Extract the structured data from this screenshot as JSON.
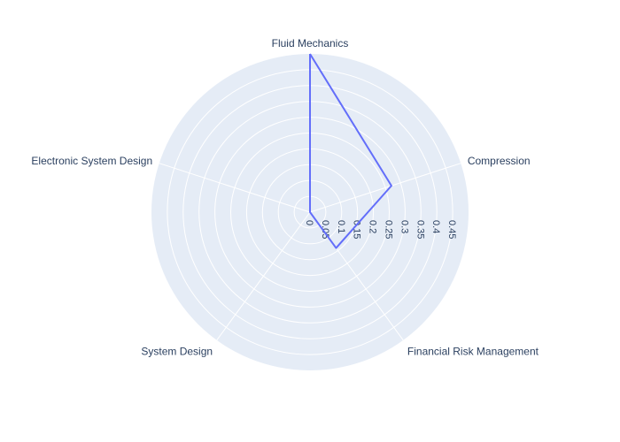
{
  "chart_data": {
    "type": "radar",
    "categories": [
      "Fluid Mechanics",
      "Compression",
      "Financial Risk Management",
      "System Design",
      "Electronic System Design"
    ],
    "values": [
      0.5,
      0.27,
      0.14,
      0.0,
      0.0
    ],
    "radial_range": [
      0,
      0.5
    ],
    "radial_ticks": [
      "0",
      "0.05",
      "0.1",
      "0.15",
      "0.2",
      "0.25",
      "0.3",
      "0.35",
      "0.4",
      "0.45"
    ],
    "line_color": "#636efa",
    "background_color": "#e5ecf6",
    "grid_color": "#ffffff",
    "grid": true
  }
}
